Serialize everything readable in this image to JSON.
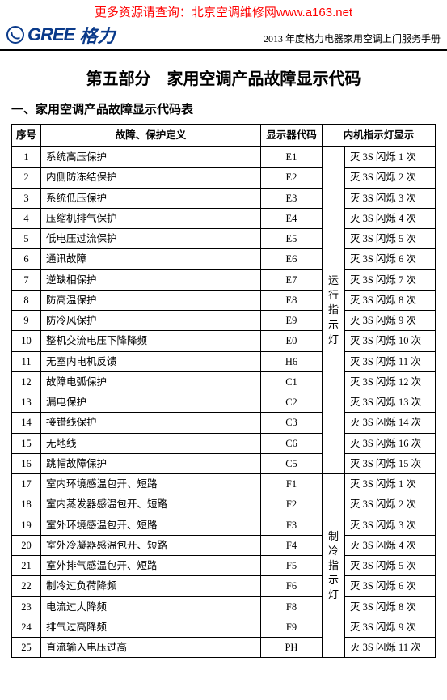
{
  "top_link": "更多资源请查询：北京空调维修网www.a163.net",
  "brand_en": "GREE",
  "brand_cn": "格力",
  "manual_label": "2013 年度格力电器家用空调上门服务手册",
  "section_title": "第五部分　家用空调产品故障显示代码",
  "subsection": "一、家用空调产品故障显示代码表",
  "columns": [
    "序号",
    "故障、保护定义",
    "显示器代码",
    "内机指示灯显示"
  ],
  "group1_label": "运行指示灯",
  "group2_label": "制冷指示灯",
  "rows": [
    {
      "n": "1",
      "def": "系统高压保护",
      "code": "E1",
      "ind": "灭 3S 闪烁 1 次"
    },
    {
      "n": "2",
      "def": "内侧防冻结保护",
      "code": "E2",
      "ind": "灭 3S 闪烁 2 次"
    },
    {
      "n": "3",
      "def": "系统低压保护",
      "code": "E3",
      "ind": "灭 3S 闪烁 3 次"
    },
    {
      "n": "4",
      "def": "压缩机排气保护",
      "code": "E4",
      "ind": "灭 3S 闪烁 4 次"
    },
    {
      "n": "5",
      "def": "低电压过流保护",
      "code": "E5",
      "ind": "灭 3S 闪烁 5 次"
    },
    {
      "n": "6",
      "def": "通讯故障",
      "code": "E6",
      "ind": "灭 3S 闪烁 6 次"
    },
    {
      "n": "7",
      "def": "逆缺相保护",
      "code": "E7",
      "ind": "灭 3S 闪烁 7 次"
    },
    {
      "n": "8",
      "def": "防高温保护",
      "code": "E8",
      "ind": "灭 3S 闪烁 8 次"
    },
    {
      "n": "9",
      "def": "防冷风保护",
      "code": "E9",
      "ind": "灭 3S 闪烁 9 次"
    },
    {
      "n": "10",
      "def": "整机交流电压下降降频",
      "code": "E0",
      "ind": "灭 3S 闪烁 10 次"
    },
    {
      "n": "11",
      "def": "无室内电机反馈",
      "code": "H6",
      "ind": "灭 3S 闪烁 11 次"
    },
    {
      "n": "12",
      "def": "故障电弧保护",
      "code": "C1",
      "ind": "灭 3S 闪烁 12 次"
    },
    {
      "n": "13",
      "def": "漏电保护",
      "code": "C2",
      "ind": "灭 3S 闪烁 13 次"
    },
    {
      "n": "14",
      "def": "接错线保护",
      "code": "C3",
      "ind": "灭 3S 闪烁 14 次"
    },
    {
      "n": "15",
      "def": "无地线",
      "code": "C6",
      "ind": "灭 3S 闪烁 16 次"
    },
    {
      "n": "16",
      "def": "跳帽故障保护",
      "code": "C5",
      "ind": "灭 3S 闪烁 15 次"
    },
    {
      "n": "17",
      "def": "室内环境感温包开、短路",
      "code": "F1",
      "ind": "灭 3S 闪烁 1 次"
    },
    {
      "n": "18",
      "def": "室内蒸发器感温包开、短路",
      "code": "F2",
      "ind": "灭 3S 闪烁 2 次"
    },
    {
      "n": "19",
      "def": "室外环境感温包开、短路",
      "code": "F3",
      "ind": "灭 3S 闪烁 3 次"
    },
    {
      "n": "20",
      "def": "室外冷凝器感温包开、短路",
      "code": "F4",
      "ind": "灭 3S 闪烁 4 次"
    },
    {
      "n": "21",
      "def": "室外排气感温包开、短路",
      "code": "F5",
      "ind": "灭 3S 闪烁 5 次"
    },
    {
      "n": "22",
      "def": "制冷过负荷降频",
      "code": "F6",
      "ind": "灭 3S 闪烁 6 次"
    },
    {
      "n": "23",
      "def": "电流过大降频",
      "code": "F8",
      "ind": "灭 3S 闪烁 8 次"
    },
    {
      "n": "24",
      "def": "排气过高降频",
      "code": "F9",
      "ind": "灭 3S 闪烁 9 次"
    },
    {
      "n": "25",
      "def": "直流输入电压过高",
      "code": "PH",
      "ind": "灭 3S 闪烁 11 次"
    }
  ]
}
